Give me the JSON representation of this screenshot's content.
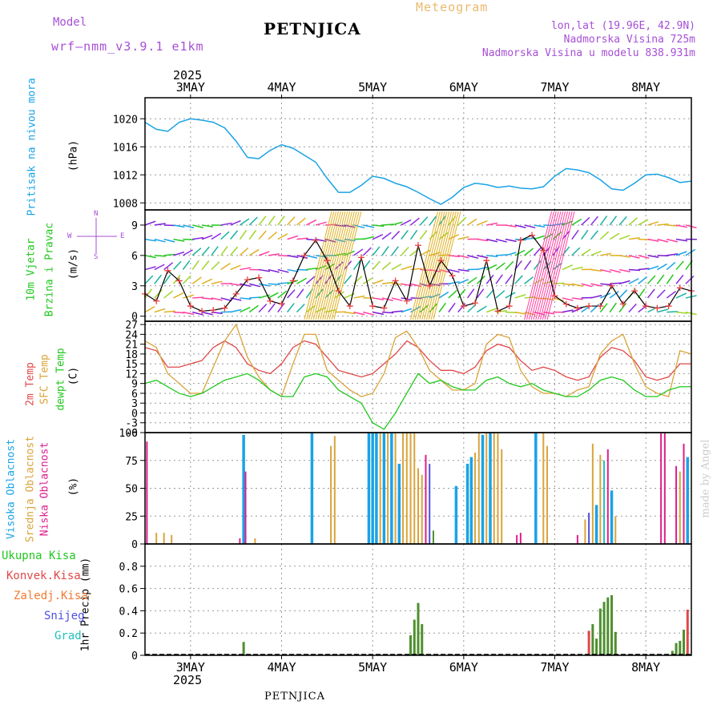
{
  "header": {
    "model_label": "Model",
    "model_name": "wrf–nmm_v3.9.1  e1km",
    "station": "PETNJICA",
    "meteogram": "Meteogram",
    "lonlat": "lon,lat (19.96E, 42.9N)",
    "altitude": "Nadmorska Visina 725m",
    "model_altitude": "Nadmorska Visina u modelu 838.931m",
    "credit": "made by Angel",
    "footer_station": "PETNJICA"
  },
  "colors": {
    "pressure": "#1aa3e6",
    "wind_speed": "#000000",
    "wind_marker": "#e84040",
    "temp2m": "#e04848",
    "sfc_temp": "#d9a43a",
    "dewpt": "#22c81e",
    "cloud_high": "#1aa3e6",
    "cloud_mid": "#d9a43a",
    "cloud_low": "#e01e8c",
    "precip_total": "#4e8f2e",
    "precip_conv": "#e04848",
    "precip_frz": "#f07a30",
    "precip_snow": "#5050e0",
    "precip_graupel": "#20c0c0"
  },
  "time_axis": {
    "year_top": "2025",
    "year_bottom": "2025",
    "day_labels": [
      "3MAY",
      "4MAY",
      "5MAY",
      "6MAY",
      "7MAY",
      "8MAY"
    ]
  },
  "panels": {
    "pressure": {
      "label": "Pritisak na nivou mora",
      "unit": "(hPa)"
    },
    "wind": {
      "label1": "10m Vjetar",
      "label2": "Brzina i Pravac",
      "unit": "(m/s)",
      "compass_n": "N",
      "compass_s": "S",
      "compass_w": "W",
      "compass_e": "E"
    },
    "temp": {
      "label1": "2m Temp",
      "label2": "SFC Temp",
      "label3": "dewpt Temp",
      "unit": "(C)"
    },
    "cloud": {
      "label1": "Visoka Oblacnost",
      "label2": "Srednja Oblacnost",
      "label3": "Niska Oblacnost",
      "unit": "(%)"
    },
    "precip": {
      "unit": "1hr Precip (mm)",
      "legend": [
        "Ukupna Kisa",
        "Konvek.Kisa",
        "Zaledj.Kisa",
        "Snijeg",
        "Grad"
      ]
    }
  },
  "chart_data": [
    {
      "type": "line",
      "title": "Pritisak na nivou mora",
      "ylabel": "(hPa)",
      "x_unit": "hours from 2025-05-02 12:00",
      "ylim": [
        1007,
        1023
      ],
      "yticks": [
        1008,
        1012,
        1016,
        1020
      ],
      "grid": true,
      "x": [
        0,
        3,
        6,
        9,
        12,
        15,
        18,
        21,
        24,
        27,
        30,
        33,
        36,
        39,
        42,
        45,
        48,
        51,
        54,
        57,
        60,
        63,
        66,
        69,
        72,
        75,
        78,
        81,
        84,
        87,
        90,
        93,
        96,
        99,
        102,
        105,
        108,
        111,
        114,
        117,
        120,
        123,
        126,
        129,
        132,
        135,
        138,
        141,
        144
      ],
      "series": [
        {
          "values": [
            1019.5,
            1018.5,
            1018.2,
            1019.5,
            1020.0,
            1019.8,
            1019.5,
            1018.7,
            1016.8,
            1014.5,
            1014.3,
            1015.5,
            1016.3,
            1015.8,
            1014.8,
            1013.8,
            1011.5,
            1009.5,
            1009.5,
            1010.5,
            1011.8,
            1011.5,
            1010.8,
            1010.3,
            1009.5,
            1008.6,
            1007.8,
            1008.8,
            1010.2,
            1010.8,
            1010.6,
            1010.2,
            1010.4,
            1010.1,
            1010.0,
            1010.3,
            1011.8,
            1012.9,
            1012.7,
            1012.3,
            1011.3,
            1010.0,
            1009.8,
            1010.8,
            1012.0,
            1012.1,
            1011.6,
            1010.9,
            1011.1
          ]
        }
      ]
    },
    {
      "type": "line",
      "title": "10m Vjetar Brzina i Pravac",
      "ylabel": "(m/s)",
      "ylim": [
        -0.5,
        10.5
      ],
      "yticks": [
        0,
        3,
        6,
        9
      ],
      "grid": true,
      "x": [
        0,
        3,
        6,
        9,
        12,
        15,
        18,
        21,
        24,
        27,
        30,
        33,
        36,
        39,
        42,
        45,
        48,
        51,
        54,
        57,
        60,
        63,
        66,
        69,
        72,
        75,
        78,
        81,
        84,
        87,
        90,
        93,
        96,
        99,
        102,
        105,
        108,
        111,
        114,
        117,
        120,
        123,
        126,
        129,
        132,
        135,
        138,
        141,
        144
      ],
      "series": [
        {
          "name": "wind speed",
          "values": [
            2.2,
            1.5,
            4.5,
            3.5,
            1.0,
            0.5,
            0.6,
            0.8,
            2.2,
            3.6,
            3.8,
            1.5,
            1.2,
            3.5,
            6.0,
            7.5,
            5.5,
            2.5,
            1.0,
            5.8,
            1.0,
            0.8,
            3.5,
            1.5,
            7.0,
            3.0,
            5.5,
            4.0,
            1.0,
            1.3,
            5.5,
            0.5,
            1.0,
            7.5,
            8.0,
            6.5,
            2.0,
            1.2,
            0.8,
            1.0,
            1.0,
            3.0,
            1.2,
            2.5,
            1.0,
            0.8,
            1.0,
            2.8,
            2.5
          ]
        }
      ]
    },
    {
      "type": "line",
      "title": "2m Temp / SFC Temp / dewpt Temp",
      "ylabel": "(C)",
      "ylim": [
        -6,
        28
      ],
      "yticks": [
        -6,
        -3,
        0,
        3,
        6,
        9,
        12,
        15,
        18,
        21,
        24,
        27
      ],
      "grid": true,
      "x": [
        0,
        3,
        6,
        9,
        12,
        15,
        18,
        21,
        24,
        27,
        30,
        33,
        36,
        39,
        42,
        45,
        48,
        51,
        54,
        57,
        60,
        63,
        66,
        69,
        72,
        75,
        78,
        81,
        84,
        87,
        90,
        93,
        96,
        99,
        102,
        105,
        108,
        111,
        114,
        117,
        120,
        123,
        126,
        129,
        132,
        135,
        138,
        141,
        144
      ],
      "series": [
        {
          "name": "2m Temp",
          "values": [
            20,
            19,
            14,
            14,
            15,
            16,
            20,
            22,
            20,
            15,
            13,
            12,
            15,
            20,
            22,
            21,
            17,
            13,
            12,
            11,
            12,
            15,
            18,
            22,
            20,
            16,
            13,
            13,
            12,
            14,
            19,
            21,
            20,
            16,
            13,
            14,
            13,
            11,
            10,
            11,
            17,
            20,
            19,
            16,
            11,
            10,
            11,
            15,
            15
          ]
        },
        {
          "name": "SFC Temp",
          "values": [
            22,
            20,
            12,
            9,
            6,
            6,
            14,
            22,
            27,
            17,
            11,
            7,
            5,
            15,
            24,
            24,
            13,
            10,
            7,
            5,
            6,
            12,
            23,
            25,
            20,
            13,
            10,
            7,
            7,
            9,
            21,
            24,
            23,
            13,
            8,
            6,
            6,
            5,
            7,
            8,
            18,
            22,
            24,
            15,
            8,
            6,
            5,
            19,
            18
          ]
        },
        {
          "name": "dewpt Temp",
          "values": [
            9,
            10,
            8,
            6,
            5,
            6,
            8,
            10,
            11,
            12,
            10,
            7,
            5,
            5,
            11,
            12,
            11,
            7,
            5,
            3,
            -3,
            -5,
            0,
            6,
            12,
            9,
            10,
            8,
            7,
            7,
            10,
            11,
            9,
            8,
            9,
            7,
            6,
            5,
            5,
            7,
            10,
            11,
            10,
            7,
            5,
            5,
            7,
            8,
            8
          ]
        }
      ]
    },
    {
      "type": "bar",
      "title": "Visoka / Srednja / Niska Oblacnost",
      "ylabel": "(%)",
      "ylim": [
        0,
        100
      ],
      "yticks": [
        0,
        25,
        50,
        75,
        100
      ],
      "grid": true,
      "bars": [
        {
          "t": 0.5,
          "series": "low",
          "v": 92
        },
        {
          "t": 3,
          "series": "mid",
          "v": 10
        },
        {
          "t": 5,
          "series": "mid",
          "v": 10
        },
        {
          "t": 7,
          "series": "mid",
          "v": 8
        },
        {
          "t": 25,
          "series": "low",
          "v": 5
        },
        {
          "t": 26,
          "series": "high",
          "v": 98
        },
        {
          "t": 26.5,
          "series": "low",
          "v": 65
        },
        {
          "t": 29,
          "series": "mid",
          "v": 5
        },
        {
          "t": 44,
          "series": "high",
          "v": 100
        },
        {
          "t": 49,
          "series": "mid",
          "v": 88
        },
        {
          "t": 50,
          "series": "mid",
          "v": 97
        },
        {
          "t": 59,
          "series": "high",
          "v": 100
        },
        {
          "t": 60,
          "series": "high",
          "v": 100
        },
        {
          "t": 61,
          "series": "high",
          "v": 100
        },
        {
          "t": 62,
          "series": "mid",
          "v": 100
        },
        {
          "t": 63,
          "series": "high",
          "v": 100
        },
        {
          "t": 64,
          "series": "mid",
          "v": 100
        },
        {
          "t": 65,
          "series": "high",
          "v": 100
        },
        {
          "t": 66,
          "series": "mid",
          "v": 100
        },
        {
          "t": 67,
          "series": "high",
          "v": 72
        },
        {
          "t": 68,
          "series": "mid",
          "v": 100
        },
        {
          "t": 69,
          "series": "mid",
          "v": 100
        },
        {
          "t": 70,
          "series": "mid",
          "v": 100
        },
        {
          "t": 71,
          "series": "mid",
          "v": 100
        },
        {
          "t": 72,
          "series": "mid",
          "v": 68
        },
        {
          "t": 73,
          "series": "mid",
          "v": 62
        },
        {
          "t": 74,
          "series": "low",
          "v": 80
        },
        {
          "t": 75,
          "series": "snow",
          "v": 72
        },
        {
          "t": 76,
          "series": "total",
          "v": 12
        },
        {
          "t": 82,
          "series": "high",
          "v": 52
        },
        {
          "t": 85,
          "series": "high",
          "v": 72
        },
        {
          "t": 86,
          "series": "high",
          "v": 78
        },
        {
          "t": 87,
          "series": "mid",
          "v": 82
        },
        {
          "t": 88,
          "series": "mid",
          "v": 100
        },
        {
          "t": 89,
          "series": "high",
          "v": 98
        },
        {
          "t": 90,
          "series": "mid",
          "v": 100
        },
        {
          "t": 91,
          "series": "high",
          "v": 100
        },
        {
          "t": 92,
          "series": "mid",
          "v": 100
        },
        {
          "t": 93,
          "series": "mid",
          "v": 100
        },
        {
          "t": 94,
          "series": "mid",
          "v": 85
        },
        {
          "t": 98,
          "series": "low",
          "v": 8
        },
        {
          "t": 99,
          "series": "low",
          "v": 10
        },
        {
          "t": 103,
          "series": "high",
          "v": 100
        },
        {
          "t": 105,
          "series": "mid",
          "v": 100
        },
        {
          "t": 106,
          "series": "mid",
          "v": 88
        },
        {
          "t": 114,
          "series": "low",
          "v": 8
        },
        {
          "t": 116,
          "series": "mid",
          "v": 22
        },
        {
          "t": 117,
          "series": "snow",
          "v": 28
        },
        {
          "t": 118,
          "series": "mid",
          "v": 90
        },
        {
          "t": 119,
          "series": "high",
          "v": 35
        },
        {
          "t": 120,
          "series": "mid",
          "v": 80
        },
        {
          "t": 121,
          "series": "grad",
          "v": 75
        },
        {
          "t": 122,
          "series": "low",
          "v": 85
        },
        {
          "t": 123,
          "series": "high",
          "v": 48
        },
        {
          "t": 124,
          "series": "mid",
          "v": 25
        },
        {
          "t": 136,
          "series": "low",
          "v": 100
        },
        {
          "t": 137,
          "series": "low",
          "v": 100
        },
        {
          "t": 140,
          "series": "low",
          "v": 70
        },
        {
          "t": 141,
          "series": "mid",
          "v": 65
        },
        {
          "t": 142,
          "series": "low",
          "v": 90
        },
        {
          "t": 143,
          "series": "high",
          "v": 78
        }
      ]
    },
    {
      "type": "bar",
      "title": "1hr Precip (mm)",
      "ylabel": "1hr Precip (mm)",
      "ylim": [
        0,
        1.0
      ],
      "yticks": [
        0,
        0.2,
        0.4,
        0.6,
        0.8
      ],
      "grid": true,
      "bars": [
        {
          "t": 26,
          "series": "total",
          "v": 0.12
        },
        {
          "t": 70,
          "series": "total",
          "v": 0.18
        },
        {
          "t": 71,
          "series": "total",
          "v": 0.32
        },
        {
          "t": 72,
          "series": "total",
          "v": 0.47
        },
        {
          "t": 73,
          "series": "total",
          "v": 0.28
        },
        {
          "t": 117,
          "series": "conv",
          "v": 0.22
        },
        {
          "t": 118,
          "series": "total",
          "v": 0.28
        },
        {
          "t": 119,
          "series": "total",
          "v": 0.15
        },
        {
          "t": 120,
          "series": "total",
          "v": 0.42
        },
        {
          "t": 121,
          "series": "total",
          "v": 0.48
        },
        {
          "t": 122,
          "series": "total",
          "v": 0.52
        },
        {
          "t": 123,
          "series": "total",
          "v": 0.54
        },
        {
          "t": 124,
          "series": "total",
          "v": 0.21
        },
        {
          "t": 139,
          "series": "total",
          "v": 0.04
        },
        {
          "t": 140,
          "series": "total",
          "v": 0.11
        },
        {
          "t": 141,
          "series": "total",
          "v": 0.13
        },
        {
          "t": 142,
          "series": "total",
          "v": 0.23
        },
        {
          "t": 143,
          "series": "conv",
          "v": 0.41
        }
      ]
    }
  ]
}
